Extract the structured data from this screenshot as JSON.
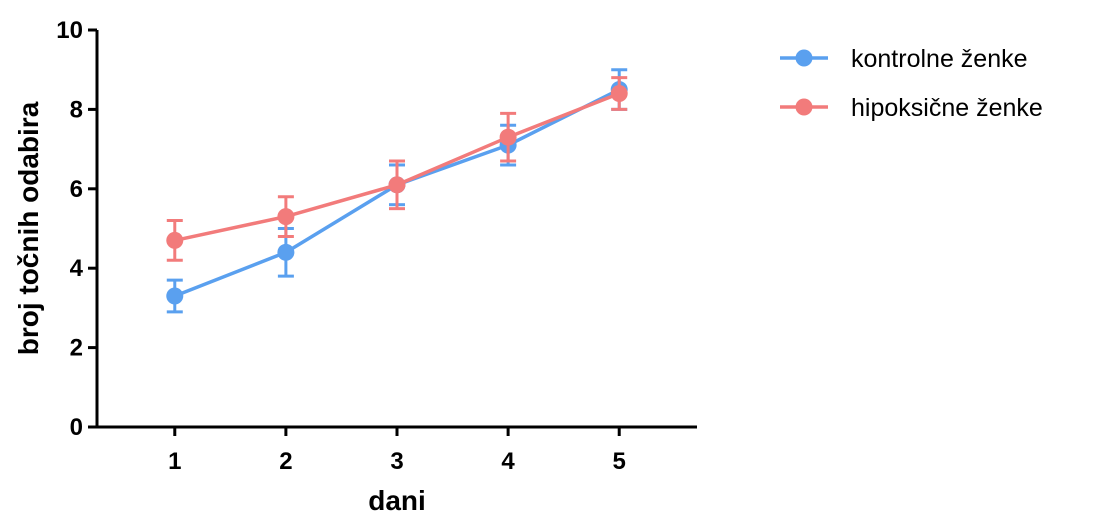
{
  "chart_data": {
    "type": "line",
    "title": "",
    "xlabel": "dani",
    "ylabel": "broj točnih odabira",
    "x": [
      1,
      2,
      3,
      4,
      5
    ],
    "xlim": [
      0.3,
      5.7
    ],
    "ylim": [
      0,
      10
    ],
    "yticks": [
      0,
      2,
      4,
      6,
      8,
      10
    ],
    "grid": false,
    "legend": "right",
    "series": [
      {
        "name": "kontrolne ženke",
        "color": "#5aa0ef",
        "values": [
          3.3,
          4.4,
          6.1,
          7.1,
          8.5
        ],
        "errors": [
          0.4,
          0.6,
          0.5,
          0.5,
          0.5
        ]
      },
      {
        "name": "hipoksične ženke",
        "color": "#f27b7b",
        "values": [
          4.7,
          5.3,
          6.1,
          7.3,
          8.4
        ],
        "errors": [
          0.5,
          0.5,
          0.6,
          0.6,
          0.4
        ]
      }
    ]
  }
}
